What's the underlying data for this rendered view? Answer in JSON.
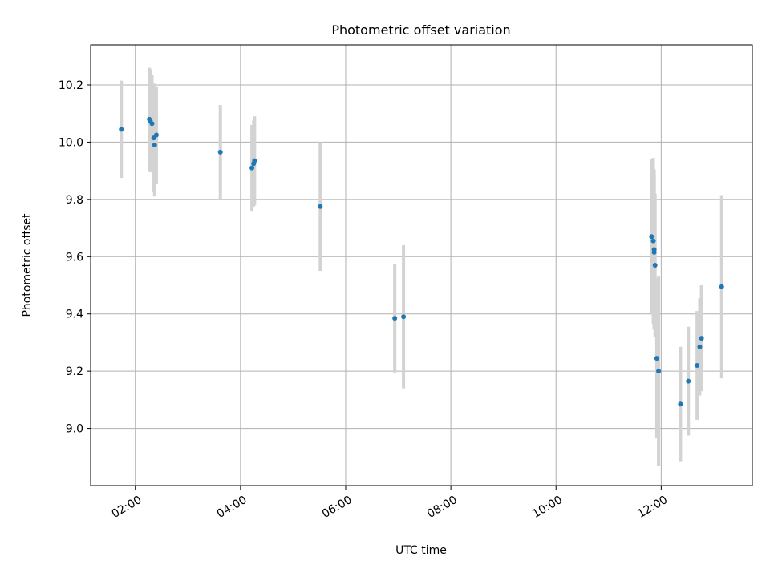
{
  "chart_data": {
    "type": "scatter",
    "title": "Photometric offset variation",
    "xlabel": "UTC time",
    "ylabel": "Photometric offset",
    "xlim": [
      "01:09",
      "13:44"
    ],
    "ylim": [
      8.8,
      10.34
    ],
    "xticks": [
      "02:00",
      "04:00",
      "06:00",
      "08:00",
      "10:00",
      "12:00"
    ],
    "yticks": [
      9.0,
      9.2,
      9.4,
      9.6,
      9.8,
      10.0,
      10.2
    ],
    "grid": true,
    "colors": {
      "points": "#1f77b4",
      "errorbars": "#d3d3d3",
      "grid": "#b0b0b0"
    },
    "points": [
      {
        "x": "01:44",
        "y": 10.045,
        "err": 0.17
      },
      {
        "x": "02:16",
        "y": 10.08,
        "err": 0.18
      },
      {
        "x": "02:17",
        "y": 10.075,
        "err": 0.18
      },
      {
        "x": "02:19",
        "y": 10.065,
        "err": 0.17
      },
      {
        "x": "02:21",
        "y": 10.015,
        "err": 0.19
      },
      {
        "x": "02:22",
        "y": 9.99,
        "err": 0.18
      },
      {
        "x": "02:24",
        "y": 10.025,
        "err": 0.17
      },
      {
        "x": "03:37",
        "y": 9.965,
        "err": 0.165
      },
      {
        "x": "04:13",
        "y": 9.91,
        "err": 0.15
      },
      {
        "x": "04:15",
        "y": 9.925,
        "err": 0.15
      },
      {
        "x": "04:16",
        "y": 9.935,
        "err": 0.155
      },
      {
        "x": "05:31",
        "y": 9.775,
        "err": 0.225
      },
      {
        "x": "06:56",
        "y": 9.385,
        "err": 0.19
      },
      {
        "x": "07:06",
        "y": 9.39,
        "err": 0.25
      },
      {
        "x": "11:49",
        "y": 9.67,
        "err": 0.27
      },
      {
        "x": "11:51",
        "y": 9.655,
        "err": 0.29
      },
      {
        "x": "11:52",
        "y": 9.625,
        "err": 0.28
      },
      {
        "x": "11:52",
        "y": 9.615,
        "err": 0.27
      },
      {
        "x": "11:53",
        "y": 9.57,
        "err": 0.25
      },
      {
        "x": "11:55",
        "y": 9.245,
        "err": 0.28
      },
      {
        "x": "11:57",
        "y": 9.2,
        "err": 0.33
      },
      {
        "x": "12:22",
        "y": 9.085,
        "err": 0.2
      },
      {
        "x": "12:31",
        "y": 9.165,
        "err": 0.19
      },
      {
        "x": "12:41",
        "y": 9.22,
        "err": 0.19
      },
      {
        "x": "12:44",
        "y": 9.285,
        "err": 0.17
      },
      {
        "x": "12:46",
        "y": 9.315,
        "err": 0.185
      },
      {
        "x": "13:09",
        "y": 9.495,
        "err": 0.32
      }
    ]
  }
}
